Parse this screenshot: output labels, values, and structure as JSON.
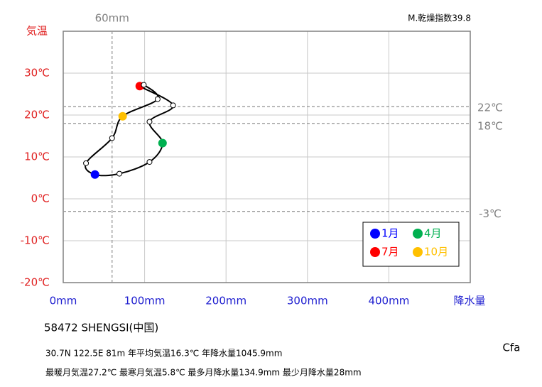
{
  "chart_data": {
    "type": "climograph",
    "x_label": "降水量",
    "y_label": "気温",
    "dryness_index": "M.乾燥指数39.8",
    "station": "58472  SHENGSI(中国)",
    "climate_class": "Cfa",
    "info_line1": "30.7N  122.5E  81m  年平均気温16.3℃ 年降水量1045.9mm",
    "info_line2": "最暖月気温27.2℃ 最寒月気温5.8℃ 最多月降水量134.9mm 最少月降水量28mm",
    "x": [
      39,
      69,
      106,
      122,
      106,
      135,
      94,
      99,
      116,
      73,
      60,
      28
    ],
    "values": [
      5.8,
      6.0,
      8.8,
      13.3,
      18.4,
      22.3,
      26.9,
      27.2,
      23.8,
      19.7,
      14.5,
      8.5
    ],
    "marker_colors": [
      "#0000ff",
      null,
      null,
      "#00b050",
      null,
      null,
      "#ff0000",
      null,
      null,
      "#ffc000",
      null,
      null
    ],
    "legend": [
      {
        "name": "1月",
        "color": "#0000ff"
      },
      {
        "name": "4月",
        "color": "#00b050"
      },
      {
        "name": "7月",
        "color": "#ff0000"
      },
      {
        "name": "10月",
        "color": "#ffc000"
      }
    ],
    "xlim": [
      0,
      500
    ],
    "ylim": [
      -20,
      40
    ],
    "xticks": [
      {
        "value": 0,
        "label": "0mm"
      },
      {
        "value": 100,
        "label": "100mm"
      },
      {
        "value": 200,
        "label": "200mm"
      },
      {
        "value": 300,
        "label": "300mm"
      },
      {
        "value": 400,
        "label": "400mm"
      }
    ],
    "yticks": [
      {
        "value": -20,
        "label": "-20℃"
      },
      {
        "value": -10,
        "label": "-10℃"
      },
      {
        "value": 0,
        "label": "0℃"
      },
      {
        "value": 10,
        "label": "10℃"
      },
      {
        "value": 20,
        "label": "20℃"
      },
      {
        "value": 30,
        "label": "30℃"
      }
    ],
    "x_ref_lines": [
      {
        "value": 60,
        "label": "60mm"
      }
    ],
    "y_ref_lines": [
      {
        "value": 22,
        "label": "22℃"
      },
      {
        "value": 18,
        "label": "18℃"
      },
      {
        "value": -3,
        "label": "-3℃"
      }
    ],
    "grid": true
  }
}
